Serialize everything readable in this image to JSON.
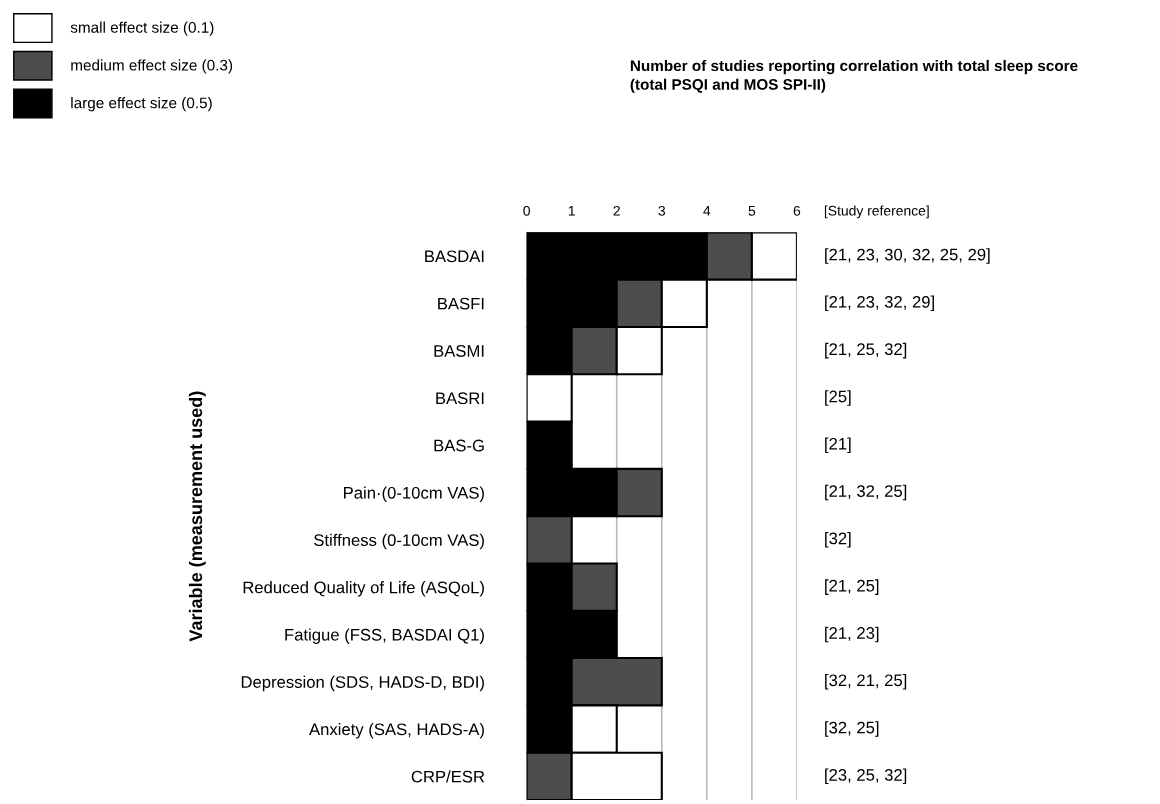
{
  "chart_data": {
    "type": "bar",
    "orientation": "horizontal",
    "stacked": true,
    "title": "Number of studies reporting correlation with total sleep score\n(total PSQI and MOS SPI-II)",
    "ylabel": "Variable (measurement used)",
    "categories": [
      "BASDAI",
      "BASFI",
      "BASMI",
      "BASRI",
      "BAS-G",
      "Pain·(0-10cm VAS)",
      "Stiffness (0-10cm VAS)",
      "Reduced Quality of Life (ASQoL)",
      "Fatigue (FSS, BASDAI Q1)",
      "Depression (SDS, HADS-D, BDI)",
      "Anxiety (SAS, HADS-A)",
      "CRP/ESR"
    ],
    "series": [
      {
        "name": "large effect size (0.5)",
        "color": "#000000",
        "values": [
          4,
          2,
          1,
          0,
          1,
          2,
          0,
          1,
          2,
          1,
          1,
          0
        ]
      },
      {
        "name": "medium effect size (0.3)",
        "color": "#4d4d4d",
        "values": [
          1,
          1,
          1,
          0,
          0,
          1,
          1,
          1,
          0,
          2,
          0,
          1
        ]
      },
      {
        "name": "small effect size (0.1)",
        "color": "#ffffff",
        "values": [
          1,
          1,
          1,
          1,
          0,
          0,
          0,
          0,
          0,
          0,
          1,
          2
        ]
      }
    ],
    "xlim": [
      0,
      6
    ],
    "xticks": [
      0,
      1,
      2,
      3,
      4,
      5,
      6
    ],
    "grid": "x",
    "legend": "top left",
    "annotations": [
      "[Study reference]",
      "[21, 23, 30, 32, 25, 29]",
      "[21, 23, 32, 29]",
      "[21, 25, 32]",
      "[25]",
      "[21]",
      "[21, 32, 25]",
      "[32]",
      "[21, 25]",
      "[21, 23]",
      "[32, 21, 25]",
      "[32, 25]",
      "[23, 25, 32]"
    ]
  }
}
